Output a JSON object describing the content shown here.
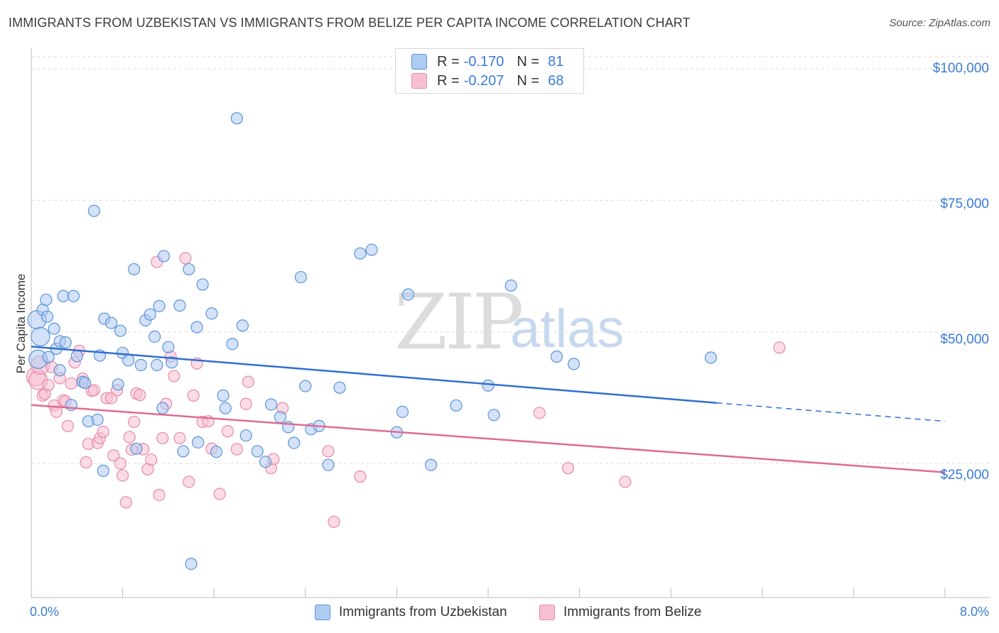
{
  "header": {
    "title": "IMMIGRANTS FROM UZBEKISTAN VS IMMIGRANTS FROM BELIZE PER CAPITA INCOME CORRELATION CHART",
    "source": "Source: ZipAtlas.com"
  },
  "watermark": {
    "zip": "ZIP",
    "atlas": "atlas"
  },
  "legend": {
    "series1": {
      "r_label": "R =",
      "r_value": "-0.170",
      "n_label": "N =",
      "n_value": "81"
    },
    "series2": {
      "r_label": "R =",
      "r_value": "-0.207",
      "n_label": "N =",
      "n_value": "68"
    }
  },
  "colors": {
    "blue_fill": "#aecbf2",
    "blue_stroke": "#5b93d6",
    "blue_line": "#2f6fd1",
    "pink_fill": "#f7c0d2",
    "pink_stroke": "#e58aa9",
    "pink_line": "#e06a94",
    "grid": "#dddddd",
    "axis_text": "#3a7bd5"
  },
  "chart_data": {
    "type": "scatter",
    "title": "IMMIGRANTS FROM UZBEKISTAN VS IMMIGRANTS FROM BELIZE PER CAPITA INCOME CORRELATION CHART",
    "xlabel": "",
    "ylabel": "Per Capita Income",
    "xlim": [
      0,
      8
    ],
    "ylim": [
      2000,
      104000
    ],
    "x_tick_labels": [
      "0.0%",
      "8.0%"
    ],
    "y_ticks": [
      25000,
      50000,
      75000,
      100000
    ],
    "y_tick_labels": [
      "$25,000",
      "$50,000",
      "$75,000",
      "$100,000"
    ],
    "legend_position": "bottom",
    "series": [
      {
        "name": "Immigrants from Uzbekistan",
        "color": "#5b93d6",
        "trend": {
          "x0": 0.0,
          "y0": 47200,
          "x1": 6.0,
          "y1": 36500,
          "dash_to_x": 8.0,
          "dash_to_y": 33000
        },
        "points": [
          [
            0.05,
            52300
          ],
          [
            0.08,
            49100
          ],
          [
            0.06,
            44800
          ],
          [
            0.1,
            54200
          ],
          [
            0.13,
            56100
          ],
          [
            0.14,
            52900
          ],
          [
            0.2,
            50600
          ],
          [
            0.22,
            46800
          ],
          [
            0.25,
            48200
          ],
          [
            0.28,
            56800
          ],
          [
            0.37,
            56800
          ],
          [
            0.4,
            45400
          ],
          [
            0.15,
            45200
          ],
          [
            0.3,
            48000
          ],
          [
            0.45,
            40500
          ],
          [
            0.5,
            33000
          ],
          [
            0.58,
            33300
          ],
          [
            0.63,
            23600
          ],
          [
            0.55,
            73000
          ],
          [
            0.64,
            52500
          ],
          [
            0.7,
            51700
          ],
          [
            0.76,
            40000
          ],
          [
            0.8,
            46000
          ],
          [
            0.78,
            50200
          ],
          [
            0.85,
            44600
          ],
          [
            0.9,
            61900
          ],
          [
            0.92,
            27800
          ],
          [
            0.96,
            43700
          ],
          [
            1.0,
            52200
          ],
          [
            1.04,
            53300
          ],
          [
            1.08,
            49100
          ],
          [
            1.1,
            43700
          ],
          [
            1.15,
            35500
          ],
          [
            1.12,
            54900
          ],
          [
            1.16,
            64400
          ],
          [
            1.2,
            47100
          ],
          [
            1.23,
            44200
          ],
          [
            1.3,
            55000
          ],
          [
            1.33,
            27300
          ],
          [
            1.38,
            61900
          ],
          [
            1.45,
            50900
          ],
          [
            1.46,
            29000
          ],
          [
            1.5,
            59000
          ],
          [
            1.58,
            53500
          ],
          [
            1.62,
            27200
          ],
          [
            1.68,
            37900
          ],
          [
            1.7,
            35500
          ],
          [
            1.76,
            47700
          ],
          [
            1.8,
            90600
          ],
          [
            1.85,
            51200
          ],
          [
            1.88,
            30300
          ],
          [
            1.98,
            27300
          ],
          [
            2.05,
            25300
          ],
          [
            2.1,
            36200
          ],
          [
            2.18,
            33800
          ],
          [
            2.25,
            31900
          ],
          [
            2.3,
            28900
          ],
          [
            2.36,
            60400
          ],
          [
            2.4,
            39700
          ],
          [
            2.45,
            31500
          ],
          [
            2.52,
            32100
          ],
          [
            2.6,
            24700
          ],
          [
            2.7,
            39400
          ],
          [
            2.88,
            64900
          ],
          [
            2.98,
            65600
          ],
          [
            3.2,
            30900
          ],
          [
            3.25,
            34800
          ],
          [
            3.3,
            57100
          ],
          [
            3.5,
            24700
          ],
          [
            3.72,
            36000
          ],
          [
            4.0,
            39800
          ],
          [
            4.05,
            34200
          ],
          [
            4.2,
            58800
          ],
          [
            4.6,
            45300
          ],
          [
            4.75,
            43900
          ],
          [
            5.95,
            45100
          ],
          [
            0.25,
            42700
          ],
          [
            0.47,
            40300
          ],
          [
            0.35,
            36100
          ],
          [
            1.4,
            5900
          ],
          [
            0.6,
            45500
          ]
        ]
      },
      {
        "name": "Immigrants from Belize",
        "color": "#e58aa9",
        "trend": {
          "x0": 0.0,
          "y0": 36100,
          "x1": 8.0,
          "y1": 23300
        },
        "points": [
          [
            0.04,
            41500
          ],
          [
            0.06,
            40800
          ],
          [
            0.08,
            43700
          ],
          [
            0.1,
            37900
          ],
          [
            0.12,
            38200
          ],
          [
            0.15,
            39900
          ],
          [
            0.18,
            43300
          ],
          [
            0.2,
            36000
          ],
          [
            0.22,
            34800
          ],
          [
            0.25,
            41200
          ],
          [
            0.28,
            37000
          ],
          [
            0.3,
            36800
          ],
          [
            0.32,
            32100
          ],
          [
            0.35,
            40200
          ],
          [
            0.38,
            44200
          ],
          [
            0.42,
            46400
          ],
          [
            0.45,
            41100
          ],
          [
            0.48,
            25200
          ],
          [
            0.5,
            28700
          ],
          [
            0.53,
            38800
          ],
          [
            0.55,
            38900
          ],
          [
            0.58,
            28900
          ],
          [
            0.6,
            29800
          ],
          [
            0.63,
            31000
          ],
          [
            0.66,
            37400
          ],
          [
            0.7,
            37400
          ],
          [
            0.72,
            26500
          ],
          [
            0.75,
            38900
          ],
          [
            0.78,
            25000
          ],
          [
            0.8,
            22700
          ],
          [
            0.83,
            17600
          ],
          [
            0.86,
            30000
          ],
          [
            0.9,
            32900
          ],
          [
            0.92,
            38300
          ],
          [
            0.95,
            38000
          ],
          [
            0.98,
            27700
          ],
          [
            1.02,
            23900
          ],
          [
            1.05,
            25700
          ],
          [
            1.1,
            63300
          ],
          [
            1.12,
            19000
          ],
          [
            1.15,
            29800
          ],
          [
            1.18,
            36300
          ],
          [
            1.22,
            45300
          ],
          [
            1.25,
            41600
          ],
          [
            1.3,
            29800
          ],
          [
            1.35,
            64000
          ],
          [
            1.38,
            21500
          ],
          [
            1.42,
            37900
          ],
          [
            1.45,
            44000
          ],
          [
            1.5,
            32900
          ],
          [
            1.58,
            27800
          ],
          [
            1.65,
            19200
          ],
          [
            1.72,
            31100
          ],
          [
            1.8,
            27700
          ],
          [
            1.88,
            36300
          ],
          [
            1.9,
            40500
          ],
          [
            2.1,
            24100
          ],
          [
            2.12,
            25800
          ],
          [
            2.2,
            35500
          ],
          [
            2.6,
            27300
          ],
          [
            2.65,
            13900
          ],
          [
            2.88,
            22500
          ],
          [
            4.45,
            34600
          ],
          [
            4.7,
            24100
          ],
          [
            5.2,
            21500
          ],
          [
            6.55,
            47000
          ],
          [
            0.88,
            27600
          ],
          [
            1.55,
            33000
          ]
        ]
      }
    ]
  },
  "bottom_legend": {
    "item1": "Immigrants from Uzbekistan",
    "item2": "Immigrants from Belize"
  }
}
